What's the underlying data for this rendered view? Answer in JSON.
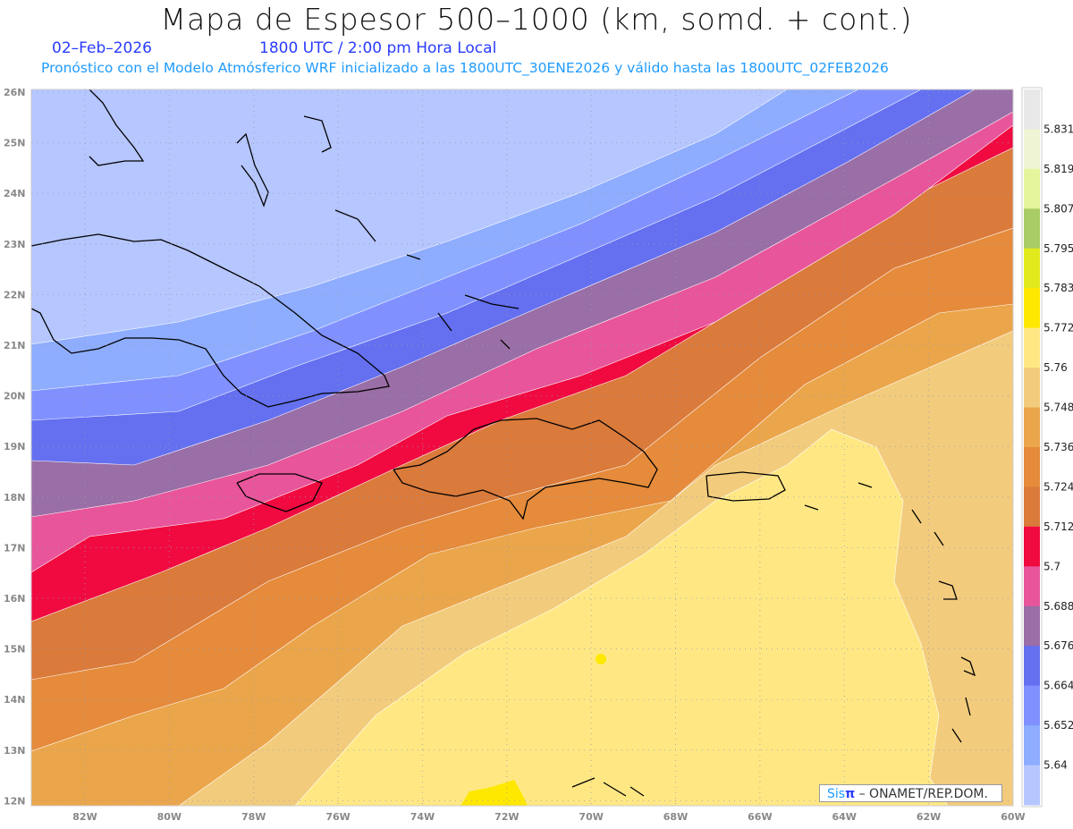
{
  "header": {
    "title": "Mapa de Espesor 500–1000 (km, somd. + cont.)",
    "date": "02–Feb–2026",
    "time": "1800 UTC / 2:00 pm Hora Local",
    "subtitle": "Pronóstico con el Modelo Atmósferico WRF inicializado a las 1800UTC_30ENE2026 y válido hasta las  1800UTC_02FEB2026"
  },
  "axes": {
    "lat_labels": [
      "26N",
      "25N",
      "24N",
      "23N",
      "22N",
      "21N",
      "20N",
      "19N",
      "18N",
      "17N",
      "16N",
      "15N",
      "14N",
      "13N",
      "12N"
    ],
    "lon_labels": [
      "82W",
      "80W",
      "78W",
      "76W",
      "74W",
      "72W",
      "70W",
      "68W",
      "66W",
      "64W",
      "62W",
      "60W"
    ]
  },
  "colorbar": {
    "labels": [
      "5.831",
      "5.819",
      "5.807",
      "5.795",
      "5.783",
      "5.772",
      "5.76",
      "5.748",
      "5.736",
      "5.724",
      "5.712",
      "5.7",
      "5.688",
      "5.676",
      "5.664",
      "5.652",
      "5.64"
    ],
    "colors": [
      "#e8e8e8",
      "#eff5d4",
      "#e5f59b",
      "#a9cc66",
      "#e0ea1c",
      "#ffe800",
      "#ffe884",
      "#f2cc7c",
      "#eba64b",
      "#e58b3b",
      "#da7a3b",
      "#f00a40",
      "#e8559b",
      "#9a6ea6",
      "#6470f0",
      "#8091ff",
      "#8eadff",
      "#b6c6ff"
    ]
  },
  "credit": {
    "brand": "Sis",
    "brand_pi": "π",
    "text": " –  ONAMET/REP.DOM."
  }
}
